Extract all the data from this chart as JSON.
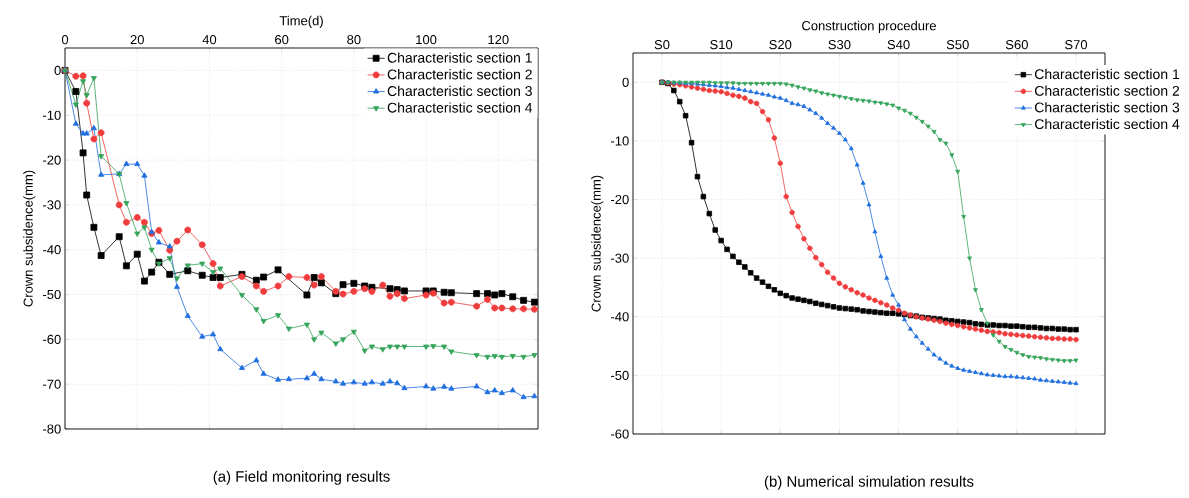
{
  "chart_data": [
    {
      "type": "line",
      "title": "(a) Field monitoring results",
      "xlabel": "Time(d)",
      "ylabel": "Crown subsidence(mm)",
      "xlim": [
        0,
        131
      ],
      "ylim": [
        -80,
        5
      ],
      "xticks": [
        0,
        20,
        40,
        60,
        80,
        100,
        120
      ],
      "yticks": [
        -80,
        -70,
        -60,
        -50,
        -40,
        -30,
        -20,
        -10,
        0
      ],
      "grid": true,
      "legend": "top right",
      "series": [
        {
          "name": "Characteristic section 1",
          "color": "#000000",
          "marker": "square",
          "x": [
            0,
            3,
            5,
            6,
            8,
            10,
            15,
            17,
            20,
            22,
            24,
            26,
            29,
            34,
            38,
            41,
            43,
            49,
            53,
            55,
            59,
            67,
            69,
            71,
            75,
            77,
            80,
            83,
            85,
            90,
            92,
            94,
            100,
            102,
            105,
            107,
            114,
            117,
            119,
            121,
            124,
            127,
            130
          ],
          "values": [
            0,
            -4.7,
            -18.4,
            -27.8,
            -35,
            -41.3,
            -37.1,
            -43.6,
            -41,
            -47,
            -45,
            -42.8,
            -45.5,
            -44.7,
            -45.7,
            -46.2,
            -46.2,
            -45.5,
            -46.8,
            -46.1,
            -44.5,
            -50.1,
            -46.2,
            -47.4,
            -49.8,
            -47.8,
            -47.5,
            -48.1,
            -48.4,
            -48.7,
            -48.9,
            -49.2,
            -49.2,
            -49.2,
            -49.5,
            -49.6,
            -49.8,
            -49.8,
            -50.1,
            -49.8,
            -50.5,
            -51.3,
            -51.7
          ]
        },
        {
          "name": "Characteristic section 2",
          "color": "#f03c3c",
          "marker": "circle",
          "x": [
            0,
            3,
            5,
            6,
            8,
            10,
            15,
            17,
            20,
            22,
            24,
            26,
            29,
            31,
            34,
            38,
            41,
            43,
            49,
            53,
            55,
            59,
            62,
            67,
            69,
            71,
            75,
            77,
            80,
            83,
            85,
            88,
            90,
            92,
            94,
            100,
            102,
            105,
            107,
            114,
            117,
            119,
            121,
            124,
            127,
            130
          ],
          "values": [
            0,
            -1.3,
            -1.2,
            -7.3,
            -15.3,
            -13.9,
            -30,
            -33.9,
            -32.8,
            -33.9,
            -36.4,
            -35.7,
            -40.1,
            -38.1,
            -35.6,
            -38.9,
            -43.1,
            -48.1,
            -46,
            -48.1,
            -49.3,
            -48.1,
            -46,
            -46.2,
            -47.9,
            -46,
            -49.3,
            -49.9,
            -49.3,
            -48.7,
            -49.3,
            -47.9,
            -50.4,
            -49.8,
            -50.9,
            -50.1,
            -49.7,
            -51.9,
            -51.7,
            -52.6,
            -51.1,
            -53,
            -53,
            -53.2,
            -53.2,
            -53.3
          ]
        },
        {
          "name": "Characteristic section 3",
          "color": "#1f6fe0",
          "marker": "triangle",
          "x": [
            0,
            3,
            5,
            6,
            8,
            10,
            15,
            17,
            20,
            22,
            24,
            26,
            29,
            31,
            34,
            38,
            41,
            43,
            49,
            53,
            55,
            59,
            62,
            67,
            69,
            71,
            75,
            77,
            80,
            83,
            85,
            88,
            90,
            92,
            94,
            100,
            102,
            105,
            107,
            114,
            117,
            119,
            121,
            124,
            127,
            130
          ],
          "values": [
            0,
            -11.9,
            -14.1,
            -14.1,
            -12.9,
            -23.3,
            -23.1,
            -20.9,
            -20.9,
            -23.5,
            -36.1,
            -38.4,
            -39.3,
            -48.3,
            -54.8,
            -59.4,
            -58.9,
            -62.2,
            -66.4,
            -64.7,
            -67.7,
            -69,
            -68.9,
            -68.7,
            -67.7,
            -68.9,
            -69.4,
            -69.9,
            -69.6,
            -69.9,
            -69.6,
            -69.9,
            -69.4,
            -69.8,
            -70.9,
            -70.5,
            -71,
            -70.6,
            -71,
            -70.5,
            -71.8,
            -71.4,
            -72,
            -71.4,
            -72.9,
            -72.7
          ]
        },
        {
          "name": "Characteristic section 4",
          "color": "#35a55a",
          "marker": "triangle-down",
          "x": [
            0,
            3,
            5,
            6,
            8,
            10,
            15,
            17,
            20,
            22,
            24,
            26,
            29,
            31,
            34,
            38,
            41,
            43,
            49,
            53,
            55,
            59,
            62,
            67,
            69,
            71,
            75,
            77,
            80,
            83,
            85,
            88,
            90,
            92,
            94,
            100,
            102,
            105,
            107,
            114,
            117,
            119,
            121,
            124,
            127,
            130
          ],
          "values": [
            0,
            -7.6,
            -2.4,
            -5.5,
            -1.7,
            -19.1,
            -23.1,
            -29.6,
            -36.4,
            -35,
            -40,
            -43.1,
            -41.9,
            -46.4,
            -43.5,
            -43.1,
            -45,
            -44.2,
            -50.1,
            -53.3,
            -55.9,
            -54.6,
            -57.6,
            -56.7,
            -60,
            -58.5,
            -60.9,
            -60,
            -58.3,
            -62.5,
            -61.6,
            -62.2,
            -61.6,
            -61.6,
            -61.6,
            -61.6,
            -61.5,
            -61.6,
            -62.7,
            -63.5,
            -63.9,
            -63.7,
            -63.9,
            -63.7,
            -63.9,
            -63.5
          ]
        }
      ]
    },
    {
      "type": "line",
      "title": "(b) Numerical simulation results",
      "xlabel": "Construction procedure",
      "ylabel": "Crown subsidence(mm)",
      "ylim": [
        -60,
        5
      ],
      "categories": [
        "S0",
        null,
        null,
        null,
        null,
        null,
        null,
        null,
        null,
        null,
        "S10",
        null,
        null,
        null,
        null,
        null,
        null,
        null,
        null,
        null,
        "S20",
        null,
        null,
        null,
        null,
        null,
        null,
        null,
        null,
        null,
        "S30",
        null,
        null,
        null,
        null,
        null,
        null,
        null,
        null,
        null,
        "S40",
        null,
        null,
        null,
        null,
        null,
        null,
        null,
        null,
        null,
        "S50",
        null,
        null,
        null,
        null,
        null,
        null,
        null,
        null,
        null,
        "S60",
        null,
        null,
        null,
        null,
        null,
        null,
        null,
        null,
        null,
        "S70"
      ],
      "yticks": [
        -60,
        -50,
        -40,
        -30,
        -20,
        -10,
        0
      ],
      "grid": true,
      "legend": "top right",
      "series": [
        {
          "name": "Characteristic section 1",
          "color": "#000000",
          "marker": "square",
          "values": [
            0,
            -0.2,
            -1.4,
            -3.3,
            -5.7,
            -10.3,
            -16.1,
            -19.5,
            -22.4,
            -25.2,
            -27,
            -28.5,
            -29.7,
            -30.7,
            -31.5,
            -32.5,
            -33.4,
            -34.1,
            -34.8,
            -35.4,
            -36,
            -36.4,
            -36.8,
            -37,
            -37.2,
            -37.4,
            -37.7,
            -37.9,
            -38.1,
            -38.3,
            -38.5,
            -38.6,
            -38.7,
            -38.8,
            -39,
            -39.1,
            -39.2,
            -39.3,
            -39.4,
            -39.4,
            -39.5,
            -39.6,
            -39.8,
            -39.9,
            -40.1,
            -40.2,
            -40.3,
            -40.4,
            -40.6,
            -40.7,
            -40.8,
            -40.9,
            -41,
            -41.2,
            -41.3,
            -41.4,
            -41.4,
            -41.5,
            -41.5,
            -41.6,
            -41.6,
            -41.7,
            -41.8,
            -41.8,
            -41.9,
            -42,
            -42,
            -42.1,
            -42.1,
            -42.2,
            -42.2
          ]
        },
        {
          "name": "Characteristic section 2",
          "color": "#f03c3c",
          "marker": "circle",
          "values": [
            0,
            -0.1,
            -0.3,
            -0.4,
            -0.6,
            -0.8,
            -1,
            -1.2,
            -1.4,
            -1.5,
            -1.6,
            -1.9,
            -2.2,
            -2.4,
            -2.7,
            -3.3,
            -3.6,
            -5,
            -6.4,
            -9.5,
            -13.8,
            -19.5,
            -22.2,
            -24.6,
            -26.7,
            -28.3,
            -29.9,
            -31.1,
            -32.4,
            -33.4,
            -34.3,
            -34.9,
            -35.4,
            -35.9,
            -36.3,
            -36.8,
            -37.2,
            -37.6,
            -38,
            -38.5,
            -38.9,
            -39.4,
            -39.7,
            -40,
            -40.2,
            -40.4,
            -40.6,
            -40.8,
            -41.1,
            -41.3,
            -41.5,
            -41.7,
            -41.9,
            -42.1,
            -42.3,
            -42.5,
            -42.6,
            -42.7,
            -42.9,
            -43,
            -43.1,
            -43.2,
            -43.3,
            -43.4,
            -43.5,
            -43.6,
            -43.7,
            -43.7,
            -43.8,
            -43.8,
            -43.9
          ]
        },
        {
          "name": "Characteristic section 3",
          "color": "#1f6fe0",
          "marker": "triangle",
          "values": [
            0,
            0,
            -0.1,
            -0.1,
            -0.2,
            -0.2,
            -0.3,
            -0.4,
            -0.5,
            -0.6,
            -0.7,
            -0.9,
            -1,
            -1.2,
            -1.4,
            -1.6,
            -1.8,
            -2,
            -2.2,
            -2.5,
            -2.7,
            -3.1,
            -3.6,
            -3.8,
            -4.1,
            -4.7,
            -5.3,
            -6.1,
            -7,
            -7.8,
            -8.7,
            -9.8,
            -11.3,
            -14.1,
            -17.2,
            -20.9,
            -25.5,
            -29.7,
            -33.4,
            -36.3,
            -38,
            -40.5,
            -42.1,
            -43.4,
            -44.5,
            -45.5,
            -46.5,
            -47.2,
            -47.9,
            -48.4,
            -48.8,
            -49.1,
            -49.3,
            -49.5,
            -49.7,
            -49.9,
            -50,
            -50.1,
            -50.2,
            -50.2,
            -50.3,
            -50.4,
            -50.5,
            -50.6,
            -50.8,
            -50.9,
            -51,
            -51.1,
            -51.2,
            -51.3,
            -51.4
          ]
        },
        {
          "name": "Characteristic section 4",
          "color": "#35a55a",
          "marker": "triangle-down",
          "values": [
            0,
            0,
            0,
            0,
            0,
            0,
            0,
            0,
            0,
            -0.1,
            -0.1,
            -0.1,
            -0.1,
            -0.2,
            -0.2,
            -0.2,
            -0.2,
            -0.2,
            -0.2,
            -0.2,
            -0.2,
            -0.3,
            -0.5,
            -0.8,
            -1,
            -1.3,
            -1.5,
            -1.8,
            -2,
            -2.2,
            -2.4,
            -2.6,
            -2.8,
            -3,
            -3.1,
            -3.2,
            -3.4,
            -3.5,
            -3.7,
            -3.9,
            -4.4,
            -4.8,
            -5.3,
            -6,
            -6.7,
            -7.5,
            -8.4,
            -9.8,
            -10.4,
            -12.4,
            -15.2,
            -22.9,
            -30,
            -35.4,
            -38.8,
            -41.1,
            -43.1,
            -44.2,
            -45.1,
            -45.6,
            -46.1,
            -46.5,
            -46.8,
            -46.9,
            -47,
            -47.2,
            -47.3,
            -47.4,
            -47.5,
            -47.5,
            -47.4
          ]
        }
      ]
    }
  ]
}
